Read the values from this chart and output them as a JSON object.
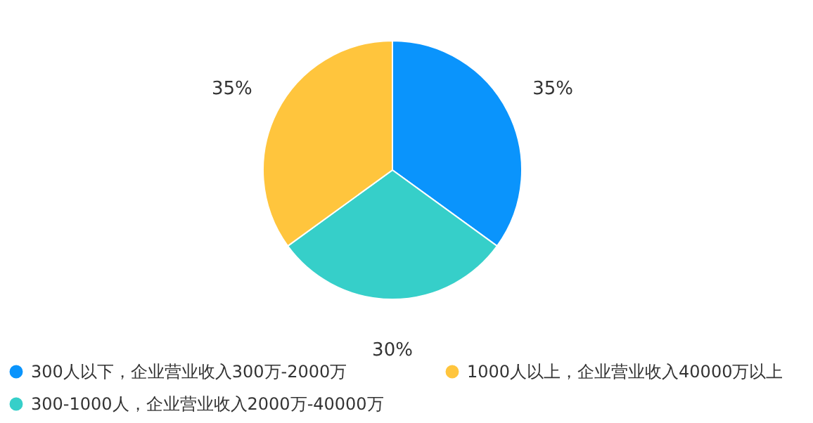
{
  "chart_data": {
    "type": "pie",
    "categories": [
      "300人以下，企业营业收入300万-2000万",
      "300-1000人，企业营业收入2000万-40000万",
      "1000人以上，企业营业收入40000万以上"
    ],
    "values": [
      35,
      30,
      35
    ],
    "colors": [
      "#0a94fc",
      "#36cfc9",
      "#ffc53d"
    ],
    "value_labels": [
      "35%",
      "30%",
      "35%"
    ],
    "legend": "bottom left"
  }
}
